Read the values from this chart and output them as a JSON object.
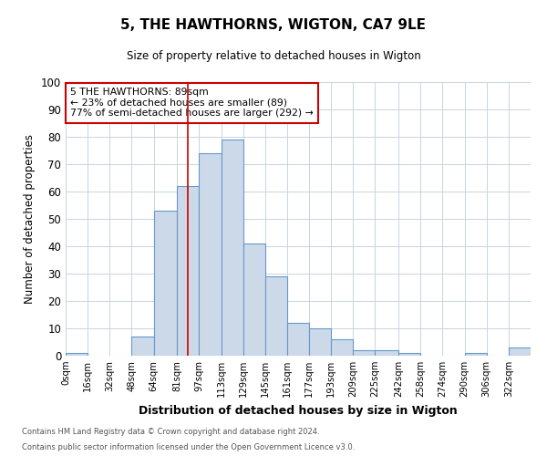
{
  "title": "5, THE HAWTHORNS, WIGTON, CA7 9LE",
  "subtitle": "Size of property relative to detached houses in Wigton",
  "xlabel": "Distribution of detached houses by size in Wigton",
  "ylabel": "Number of detached properties",
  "footnote1": "Contains HM Land Registry data © Crown copyright and database right 2024.",
  "footnote2": "Contains public sector information licensed under the Open Government Licence v3.0.",
  "annotation_line1": "5 THE HAWTHORNS: 89sqm",
  "annotation_line2": "← 23% of detached houses are smaller (89)",
  "annotation_line3": "77% of semi-detached houses are larger (292) →",
  "bin_edges": [
    0,
    16,
    32,
    48,
    64,
    81,
    97,
    113,
    129,
    145,
    161,
    177,
    193,
    209,
    225,
    242,
    258,
    274,
    290,
    306,
    322,
    338
  ],
  "bin_labels": [
    "0sqm",
    "16sqm",
    "32sqm",
    "48sqm",
    "64sqm",
    "81sqm",
    "97sqm",
    "113sqm",
    "129sqm",
    "145sqm",
    "161sqm",
    "177sqm",
    "193sqm",
    "209sqm",
    "225sqm",
    "242sqm",
    "258sqm",
    "274sqm",
    "290sqm",
    "306sqm",
    "322sqm"
  ],
  "values": [
    1,
    0,
    0,
    7,
    53,
    62,
    74,
    79,
    41,
    29,
    12,
    10,
    6,
    2,
    2,
    1,
    0,
    0,
    1,
    0,
    3
  ],
  "bar_color": "#ccd9e8",
  "bar_edge_color": "#6699cc",
  "marker_x": 89,
  "marker_color": "#cc0000",
  "ylim": [
    0,
    100
  ],
  "xlim": [
    0,
    338
  ],
  "annotation_box_color": "#cc0000",
  "background_color": "#ffffff",
  "grid_color": "#c8d4e0"
}
